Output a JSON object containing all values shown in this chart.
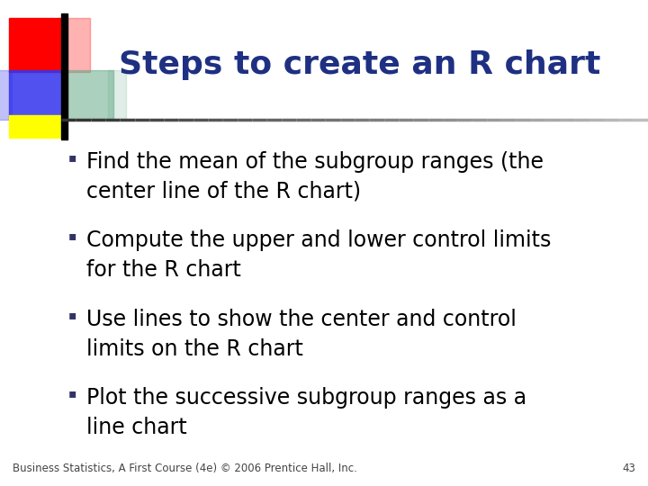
{
  "title": "Steps to create an R chart",
  "title_color": "#1F3082",
  "title_fontsize": 26,
  "background_color": "#FFFFFF",
  "bullet_points": [
    "Find the mean of the subgroup ranges (the\ncenter line of the R chart)",
    "Compute the upper and lower control limits\nfor the R chart",
    "Use lines to show the center and control\nlimits on the R chart",
    "Plot the successive subgroup ranges as a\nline chart"
  ],
  "bullet_fontsize": 17,
  "bullet_color": "#000000",
  "footer_text": "Business Statistics, A First Course (4e) © 2006 Prentice Hall, Inc.",
  "footer_page": "43",
  "footer_fontsize": 8.5,
  "logo_colors": {
    "red": "#FF0000",
    "blue": "#3333EE",
    "green": "#66AA88",
    "yellow": "#FFFF00"
  }
}
